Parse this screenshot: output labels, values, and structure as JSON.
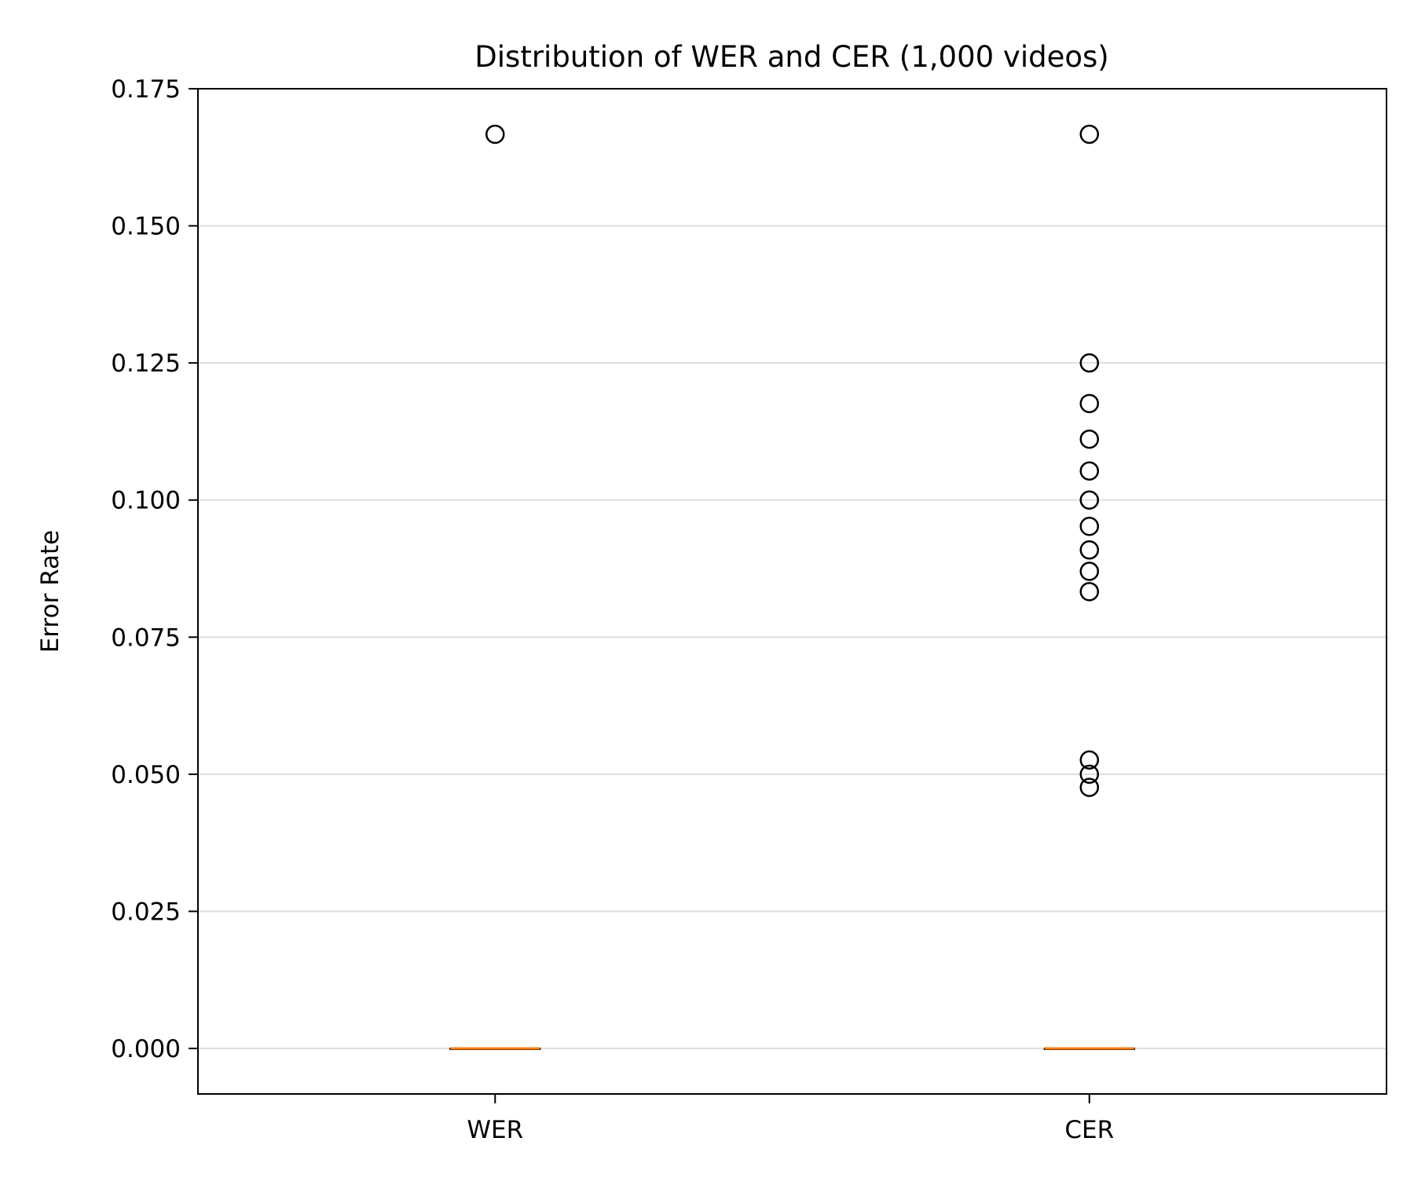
{
  "chart_data": {
    "type": "box",
    "title": "Distribution of WER and CER (1,000 videos)",
    "xlabel": "",
    "ylabel": "Error Rate",
    "ylim": [
      -0.0083,
      0.175
    ],
    "yticks": [
      "0.000",
      "0.025",
      "0.050",
      "0.075",
      "0.100",
      "0.125",
      "0.150",
      "0.175"
    ],
    "ytick_values": [
      0,
      0.025,
      0.05,
      0.075,
      0.1,
      0.125,
      0.15,
      0.175
    ],
    "grid": "horizontal",
    "categories": [
      "WER",
      "CER"
    ],
    "series": [
      {
        "category": "WER",
        "median": 0,
        "q1": 0,
        "q3": 0,
        "whisker_low": 0,
        "whisker_high": 0,
        "outliers": [
          0.1667
        ]
      },
      {
        "category": "CER",
        "median": 0,
        "q1": 0,
        "q3": 0,
        "whisker_low": 0,
        "whisker_high": 0,
        "outliers": [
          0.1667,
          0.125,
          0.1176,
          0.1111,
          0.1053,
          0.1,
          0.0952,
          0.0909,
          0.087,
          0.0833,
          0.0526,
          0.05,
          0.0476
        ]
      }
    ],
    "colors": {
      "median": "#ff7f0e",
      "box": "#000000",
      "outlier": "#000000",
      "grid": "#dddddd"
    }
  }
}
